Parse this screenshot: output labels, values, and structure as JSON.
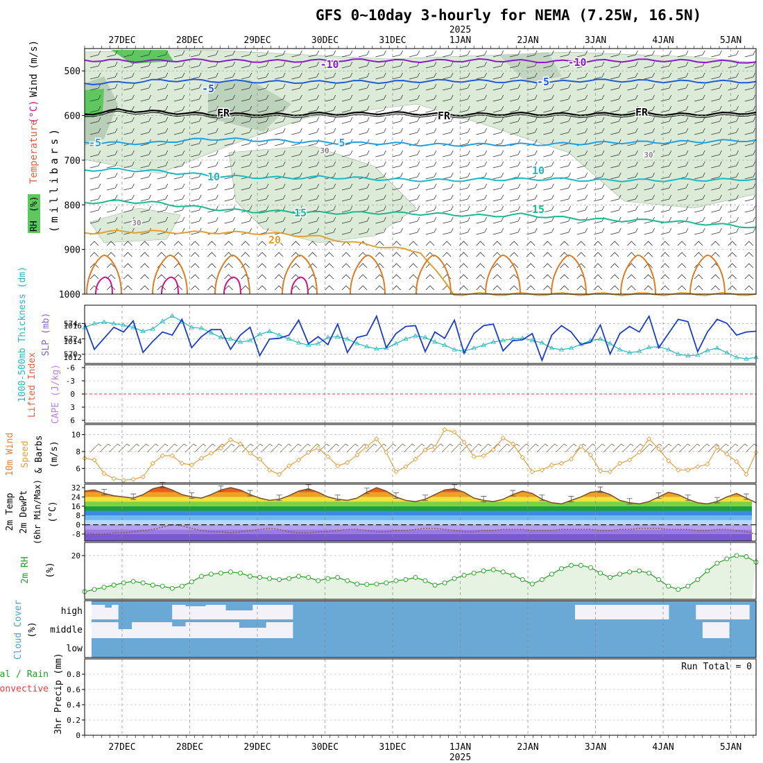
{
  "title": "GFS 0~10day 3-hourly for NEMA (7.25W, 16.5N)",
  "year_label": "2025",
  "date_labels": [
    "27DEC",
    "28DEC",
    "29DEC",
    "30DEC",
    "31DEC",
    "1JAN",
    "2JAN",
    "3JAN",
    "4JAN",
    "5JAN"
  ],
  "run_total": "Run Total = 0",
  "colors": {
    "rh_fill": "#dcebd8",
    "rh_dark": "#a9c2a9",
    "rh_green": "#5ec85e",
    "temp_m10": "#8a18c8",
    "temp_m5": "#1f5ad8",
    "temp_fr": "#000000",
    "temp_5": "#1fa0e0",
    "temp_10": "#1ab8c0",
    "temp_15": "#1ab890",
    "temp_20": "#e0a030",
    "temp_25": "#e07a20",
    "temp_30": "#d01080",
    "slp": "#1a3ccc",
    "thickness": "#22b8c0",
    "wind_speed": "#e8a040",
    "rh2m": "#22a022",
    "cloud": "#6aa8d6",
    "cloud_gap": "#f2f2f8"
  },
  "chart_data": [
    {
      "type": "contour",
      "panel": "upper-air",
      "ylabel": "(millibars)",
      "legend_labels": [
        "Temperature",
        "(°C)",
        "Wind",
        "(m/s)",
        "RH",
        "(%)"
      ],
      "yticks": [
        500,
        600,
        700,
        800,
        900,
        1000
      ],
      "ylim": [
        450,
        1000
      ],
      "contour_labels": [
        "-10",
        "-10",
        "-5",
        "-5",
        "FR",
        "FR",
        "FR",
        "-5",
        "5",
        "10",
        "10",
        "15",
        "15",
        "20",
        "30",
        "30",
        "30"
      ],
      "isotherms": [
        {
          "label": "-10",
          "color": "temp_m10",
          "mb": [
            476,
            477,
            478,
            476,
            477,
            478,
            478,
            477,
            476,
            477,
            478,
            477,
            476,
            478,
            479,
            478,
            477,
            476,
            478,
            479,
            480
          ]
        },
        {
          "label": "-5",
          "color": "temp_m5",
          "mb": [
            528,
            527,
            522,
            521,
            523,
            524,
            525,
            525,
            524,
            525,
            523,
            522,
            523,
            524,
            525,
            521,
            522,
            523,
            524,
            524,
            524
          ]
        },
        {
          "label": "FR",
          "color": "temp_fr",
          "mb": [
            597,
            588,
            591,
            595,
            598,
            597,
            598,
            596,
            596,
            594,
            596,
            598,
            597,
            596,
            597,
            597,
            596,
            596,
            598,
            596,
            593
          ]
        },
        {
          "label": "5",
          "color": "temp_5",
          "mb": [
            660,
            662,
            662,
            655,
            652,
            655,
            657,
            660,
            662,
            662,
            665,
            666,
            665,
            665,
            664,
            662,
            660,
            660,
            659,
            657,
            655
          ]
        },
        {
          "label": "10",
          "color": "temp_10",
          "mb": [
            722,
            721,
            724,
            730,
            736,
            738,
            740,
            738,
            740,
            743,
            745,
            745,
            743,
            743,
            742,
            745,
            745,
            745,
            744,
            744,
            742
          ]
        },
        {
          "label": "15",
          "color": "temp_15",
          "mb": [
            795,
            792,
            795,
            803,
            810,
            815,
            815,
            818,
            818,
            818,
            820,
            822,
            825,
            822,
            828,
            832,
            835,
            835,
            840,
            845,
            850
          ]
        },
        {
          "label": "20",
          "color": "temp_20",
          "mb": [
            863,
            860,
            860,
            862,
            862,
            863,
            866,
            872,
            885,
            895,
            905,
            1000,
            1000,
            1000,
            1000,
            1000,
            1000,
            1000,
            1000,
            1000,
            1000
          ]
        }
      ]
    },
    {
      "type": "line",
      "panel": "slp-thickness",
      "ylabel_left": "1000-500mb Thickness (dm)",
      "ylabel_right": "SLP (mb)",
      "thickness_ticks": [
        570,
        572,
        574
      ],
      "slp_ticks": [
        1012,
        1014,
        1016
      ],
      "series": [
        {
          "name": "SLP (mb)",
          "color": "slp",
          "ylim": [
            1011.2,
            1018.6
          ],
          "values": [
            1016.3,
            1013.0,
            1014.4,
            1015.8,
            1015.2,
            1016.6,
            1012.6,
            1014.0,
            1015.2,
            1014.8,
            1016.8,
            1013.2,
            1014.6,
            1015.5,
            1015.5,
            1013.0,
            1014.8,
            1015.8,
            1012.2,
            1014.3,
            1014.4,
            1014.8,
            1016.7,
            1013.7,
            1014.6,
            1013.6,
            1016.2,
            1012.6,
            1014.5,
            1014.8,
            1017.2,
            1013.2,
            1015.0,
            1015.9,
            1016.0,
            1012.7,
            1015.2,
            1014.4,
            1016.7,
            1012.5,
            1015.0,
            1016.0,
            1016.2,
            1012.8,
            1014.1,
            1014.2,
            1015.0,
            1011.6,
            1014.8,
            1016.0,
            1015.2,
            1013.6,
            1013.9,
            1016.1,
            1012.4,
            1015.0,
            1015.9,
            1015.2,
            1017.2,
            1013.2,
            1015.0,
            1016.8,
            1016.5,
            1012.7,
            1015.2,
            1016.8,
            1016.3,
            1014.8,
            1015.2,
            1015.3
          ]
        },
        {
          "name": "1000-500mb Thickness (dm)",
          "color": "thickness",
          "ylim": [
            568.8,
            576.4
          ],
          "values": [
            573.5,
            574.0,
            574.2,
            574.0,
            573.8,
            573.5,
            573.0,
            573.3,
            574.3,
            575.0,
            574.3,
            573.5,
            573.4,
            572.8,
            572.2,
            572.0,
            571.6,
            571.8,
            572.6,
            573.0,
            572.5,
            572.0,
            571.5,
            571.2,
            571.4,
            572.2,
            572.3,
            572.0,
            571.4,
            571.0,
            570.7,
            570.8,
            571.4,
            572.0,
            572.4,
            572.2,
            571.6,
            571.2,
            570.6,
            570.4,
            570.8,
            571.2,
            571.6,
            571.8,
            572.0,
            572.1,
            571.8,
            571.5,
            570.8,
            570.6,
            570.8,
            571.3,
            571.8,
            572.0,
            571.4,
            570.6,
            570.2,
            570.4,
            570.9,
            571.0,
            570.6,
            570.0,
            569.8,
            569.9,
            570.5,
            570.8,
            570.2,
            569.6,
            569.4,
            569.6
          ]
        }
      ]
    },
    {
      "type": "line",
      "panel": "lifted-index-cape",
      "ylabel_left": "Lifted Index",
      "ylabel_right": "CAPE (J/kg)",
      "yticks": [
        "-6",
        "-3",
        "0",
        "3",
        "6"
      ],
      "values": []
    },
    {
      "type": "line",
      "panel": "10m-wind",
      "ylabel": "10m Wind Speed & Barbs (m/s)",
      "ylabel_lines": [
        "10m Wind",
        "Speed",
        "& Barbs",
        "(m/s)"
      ],
      "yticks": [
        6,
        8,
        10
      ],
      "ylim": [
        4.3,
        11.2
      ],
      "series": [
        {
          "name": "10m Wind Speed",
          "color": "wind_speed",
          "values": [
            7.2,
            7.0,
            5.4,
            4.8,
            4.6,
            4.7,
            5.0,
            6.6,
            7.5,
            7.5,
            6.6,
            6.4,
            7.2,
            7.8,
            8.4,
            9.4,
            8.9,
            7.8,
            7.1,
            5.8,
            5.3,
            6.3,
            7.0,
            7.9,
            8.4,
            7.4,
            6.3,
            6.7,
            7.6,
            8.6,
            9.5,
            7.9,
            5.6,
            6.2,
            7.1,
            8.2,
            8.5,
            10.6,
            10.3,
            9.1,
            7.4,
            7.5,
            8.2,
            9.6,
            8.9,
            7.3,
            5.6,
            5.8,
            6.4,
            6.6,
            7.1,
            8.6,
            7.6,
            5.7,
            5.6,
            6.6,
            7.0,
            7.9,
            9.5,
            8.3,
            6.9,
            5.8,
            5.8,
            6.2,
            6.5,
            8.5,
            7.7,
            6.8,
            5.3,
            7.9
          ]
        }
      ]
    },
    {
      "type": "area",
      "panel": "2m-temp-dewpoint",
      "ylabel": "2m Temp 2m DewPt (6hr Min/Max) (°C)",
      "ylabel_lines": [
        "2m Temp",
        "2m DewPt",
        "(6hr Min/Max)",
        "(°C)"
      ],
      "yticks": [
        -8,
        0,
        8,
        16,
        24,
        32
      ],
      "ylim": [
        -14,
        35
      ],
      "series": [
        {
          "name": "2m Temp",
          "values": [
            29,
            30,
            27,
            25,
            24,
            23,
            26,
            31,
            33,
            30,
            26,
            24,
            23,
            26,
            30,
            32,
            30,
            26,
            23,
            21,
            22,
            25,
            29,
            31,
            28,
            24,
            22,
            21,
            23,
            28,
            32,
            29,
            24,
            21,
            20,
            22,
            26,
            30,
            31,
            28,
            23,
            21,
            20,
            22,
            26,
            29,
            27,
            22,
            19,
            18,
            21,
            24,
            28,
            29,
            26,
            21,
            19,
            18,
            20,
            24,
            28,
            26,
            22,
            19,
            18,
            20,
            24,
            27,
            23,
            19
          ]
        },
        {
          "name": "2m DewPt",
          "values": [
            -7,
            -8,
            -8,
            -7,
            -7,
            -6,
            -5,
            -4,
            -2,
            0,
            -1,
            -3,
            -5,
            -6,
            -6,
            -7,
            -6,
            -5,
            -4,
            -3,
            -4,
            -6,
            -7,
            -7,
            -6,
            -6,
            -5,
            -4,
            -4,
            -5,
            -6,
            -6,
            -5,
            -5,
            -4,
            -3,
            -3,
            -4,
            -5,
            -6,
            -6,
            -5,
            -5,
            -4,
            -4,
            -4,
            -5,
            -5,
            -5,
            -4,
            -4,
            -4,
            -4,
            -5,
            -5,
            -4,
            -4,
            -3,
            -3,
            -3,
            -4,
            -4,
            -4,
            -5,
            -5,
            -4,
            -4,
            -5,
            -6,
            -8
          ]
        }
      ]
    },
    {
      "type": "line",
      "panel": "2m-rh",
      "ylabel": "2m RH (%)",
      "ylabel_lines": [
        "2m RH",
        "(%)"
      ],
      "yticks": [
        20
      ],
      "ylim": [
        0,
        26
      ],
      "series": [
        {
          "name": "2m RH",
          "color": "rh2m",
          "values": [
            3.5,
            4.5,
            5.5,
            6.5,
            7.5,
            8.2,
            7.5,
            6.5,
            6.0,
            5.0,
            6.0,
            8.0,
            10.5,
            11.5,
            12.0,
            12.5,
            12.0,
            10.5,
            10.0,
            9.5,
            9.0,
            9.5,
            10.5,
            10.0,
            8.5,
            9.5,
            10.0,
            8.5,
            7.0,
            6.8,
            7.0,
            7.5,
            8.5,
            9.0,
            10.0,
            8.5,
            6.5,
            7.5,
            9.5,
            11.0,
            12.0,
            13.0,
            13.5,
            12.5,
            11.0,
            9.0,
            7.0,
            9.0,
            11.5,
            14.0,
            15.5,
            15.5,
            14.5,
            12.0,
            10.0,
            11.5,
            12.5,
            13.0,
            12.0,
            9.0,
            6.0,
            4.5,
            6.0,
            9.0,
            13.0,
            16.5,
            18.5,
            20.0,
            19.5,
            17.0
          ]
        }
      ]
    },
    {
      "type": "bar",
      "panel": "cloud-cover",
      "ylabel": "Cloud Cover (%)",
      "ylabel_lines": [
        "Cloud Cover",
        "(%)"
      ],
      "levels": [
        "high",
        "middle",
        "low"
      ],
      "high_gap_spans": [
        [
          0,
          4
        ],
        [
          12,
          30
        ],
        [
          72,
          86
        ],
        [
          90,
          98
        ]
      ],
      "middle_gap_spans": [
        [
          0,
          30
        ],
        [
          91,
          95
        ]
      ]
    },
    {
      "type": "bar",
      "panel": "precip",
      "ylabel": "3hr Precip (mm)",
      "legend_labels": [
        "Total / Rain",
        "Convective"
      ],
      "yticks": [
        0,
        0.2,
        0.4,
        0.6,
        0.8
      ],
      "ylim": [
        0,
        1.0
      ],
      "values": []
    }
  ]
}
